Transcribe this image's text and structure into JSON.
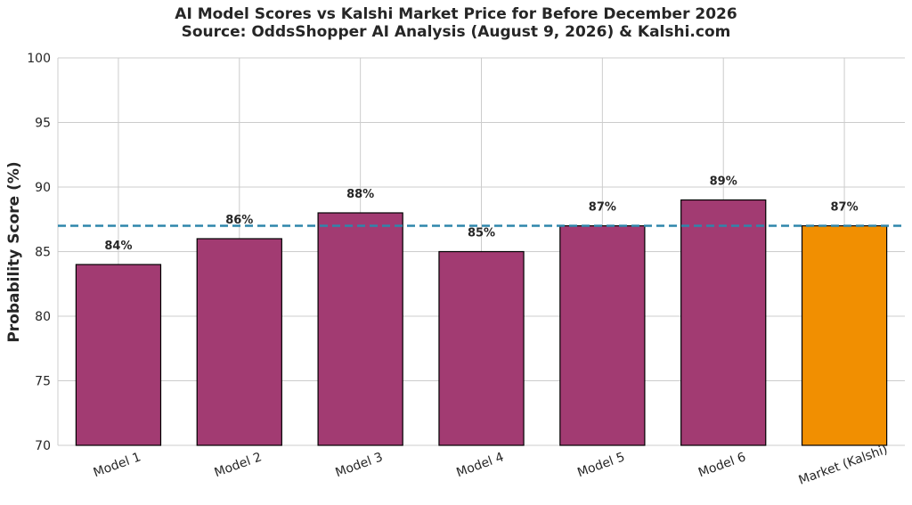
{
  "chart_data": {
    "type": "bar",
    "title": "AI Model Scores vs Kalshi Market Price for Before December 2026",
    "subtitle": "Source: OddsShopper AI Analysis (August 9, 2026) & Kalshi.com",
    "ylabel": "Probability Score (%)",
    "xlabel": "",
    "ylim": [
      70,
      100
    ],
    "yticks": [
      "70",
      "75",
      "80",
      "85",
      "90",
      "95",
      "100"
    ],
    "categories": [
      "Model 1",
      "Model 2",
      "Model 3",
      "Model 4",
      "Model 5",
      "Model 6",
      "Market (Kalshi)"
    ],
    "values": [
      84,
      86,
      88,
      85,
      87,
      89,
      87
    ],
    "data_labels": [
      "84%",
      "86%",
      "88%",
      "85%",
      "87%",
      "89%",
      "87%"
    ],
    "reference_line": {
      "value": 87,
      "style": "dashed",
      "color": "#2E86AB"
    },
    "colors": {
      "model_bar": "#A23B72",
      "market_bar": "#F18F01",
      "bar_edge": "#000000",
      "grid": "#cccccc",
      "text": "#262626"
    },
    "grid": true
  }
}
